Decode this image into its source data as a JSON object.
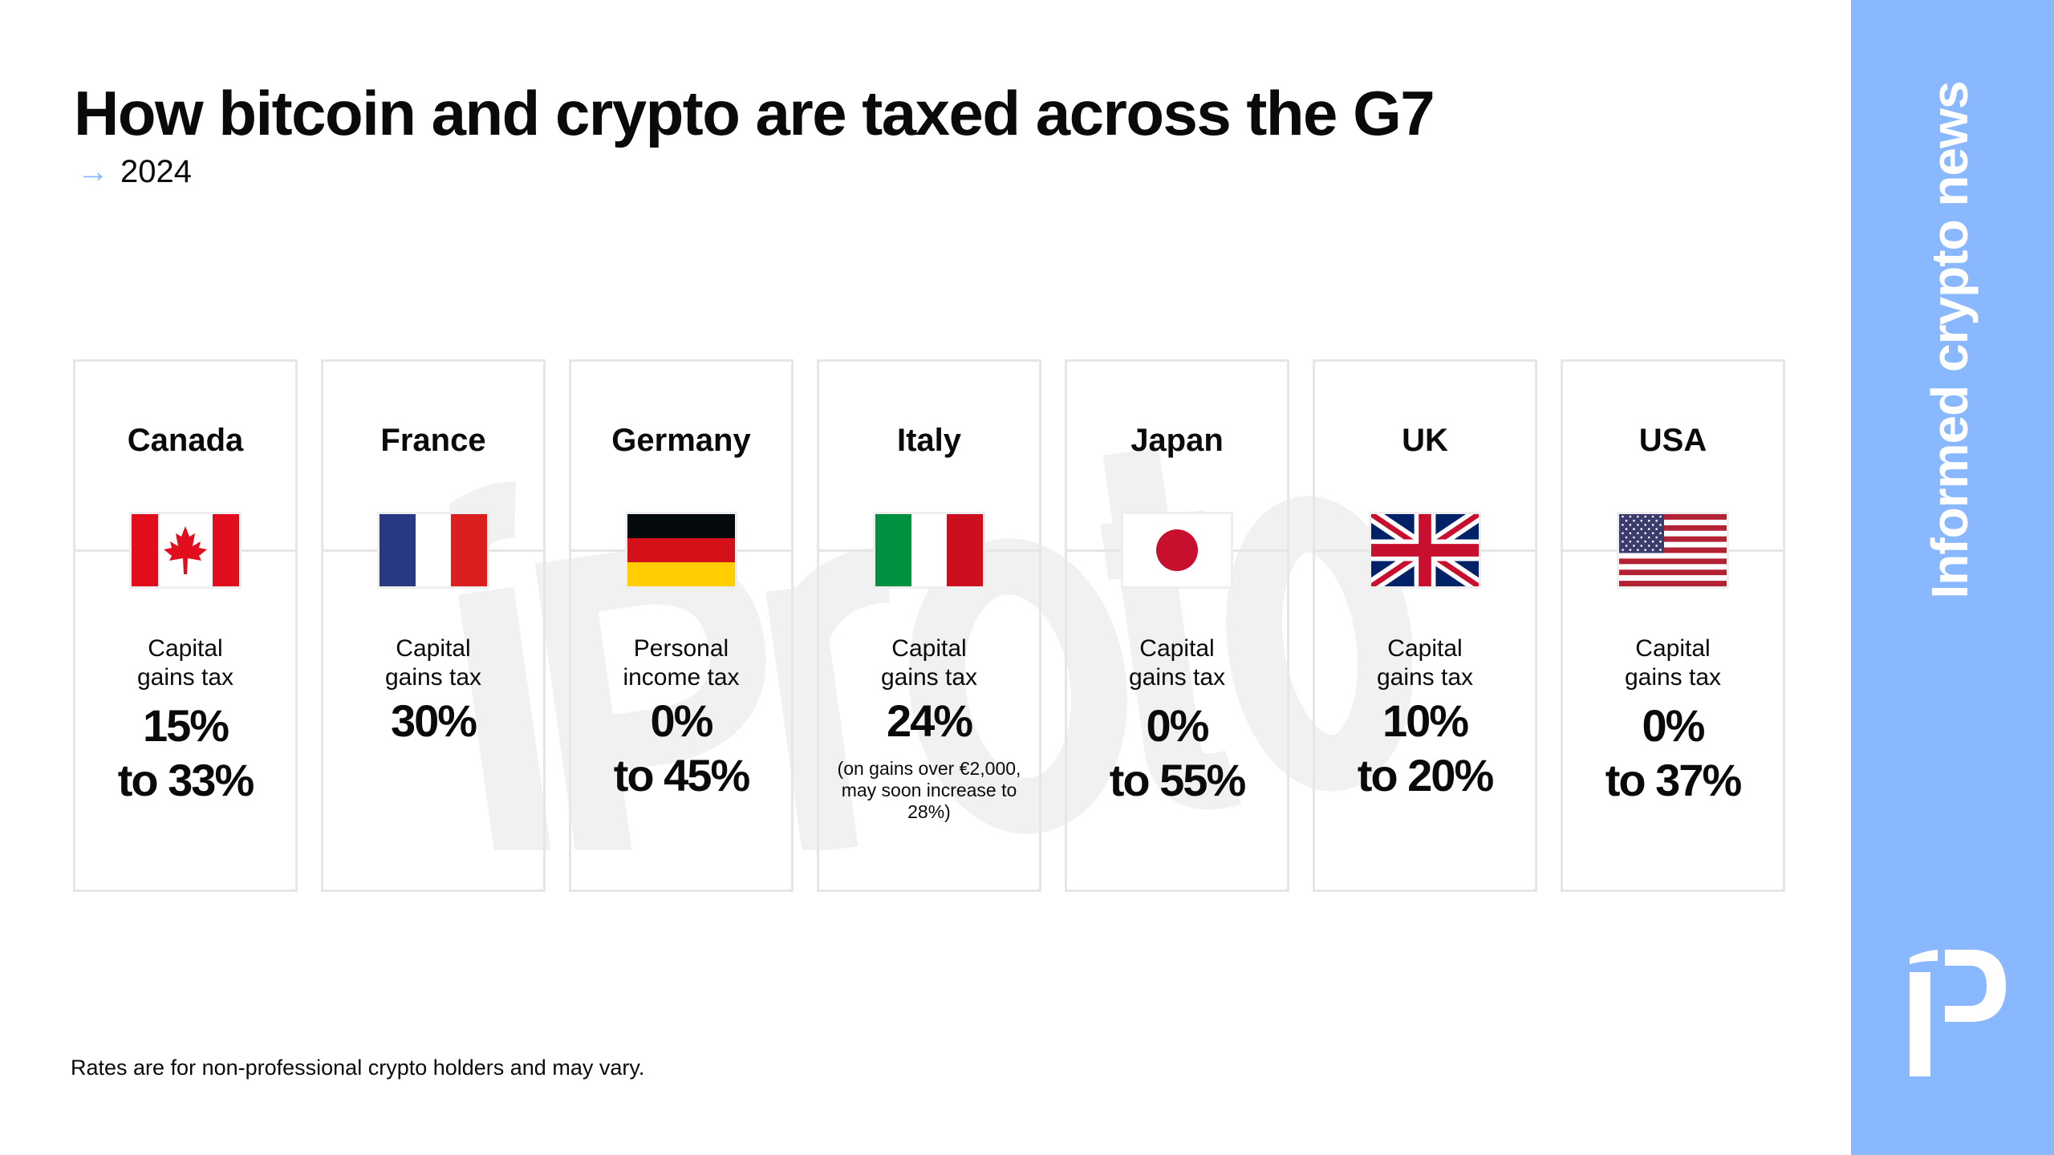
{
  "header": {
    "title": "How bitcoin and crypto are taxed across the G7",
    "subtitle": "2024",
    "arrow_icon": "arrow-right-icon"
  },
  "watermark": "iProtos",
  "colors": {
    "accent": "#8ab8ff"
  },
  "countries": [
    {
      "name": "Canada",
      "flag": "canada-flag",
      "tax_type": "Capital gains tax",
      "rate": "15% to 33%",
      "note": ""
    },
    {
      "name": "France",
      "flag": "france-flag",
      "tax_type": "Capital gains tax",
      "rate": "30%",
      "note": ""
    },
    {
      "name": "Germany",
      "flag": "germany-flag",
      "tax_type": "Personal income tax",
      "rate": "0% to 45%",
      "note": ""
    },
    {
      "name": "Italy",
      "flag": "italy-flag",
      "tax_type": "Capital gains tax",
      "rate": "24%",
      "note": "(on gains over €2,000, may soon increase to 28%)"
    },
    {
      "name": "Japan",
      "flag": "japan-flag",
      "tax_type": "Capital gains tax",
      "rate": "0% to 55%",
      "note": ""
    },
    {
      "name": "UK",
      "flag": "uk-flag",
      "tax_type": "Capital gains tax",
      "rate": "10% to 20%",
      "note": ""
    },
    {
      "name": "USA",
      "flag": "usa-flag",
      "tax_type": "Capital gains tax",
      "rate": "0% to 37%",
      "note": ""
    }
  ],
  "footer": "Rates are for non-professional crypto holders and may vary.",
  "sidebar": {
    "tagline": "Informed crypto news",
    "logo": "protos-logo"
  }
}
